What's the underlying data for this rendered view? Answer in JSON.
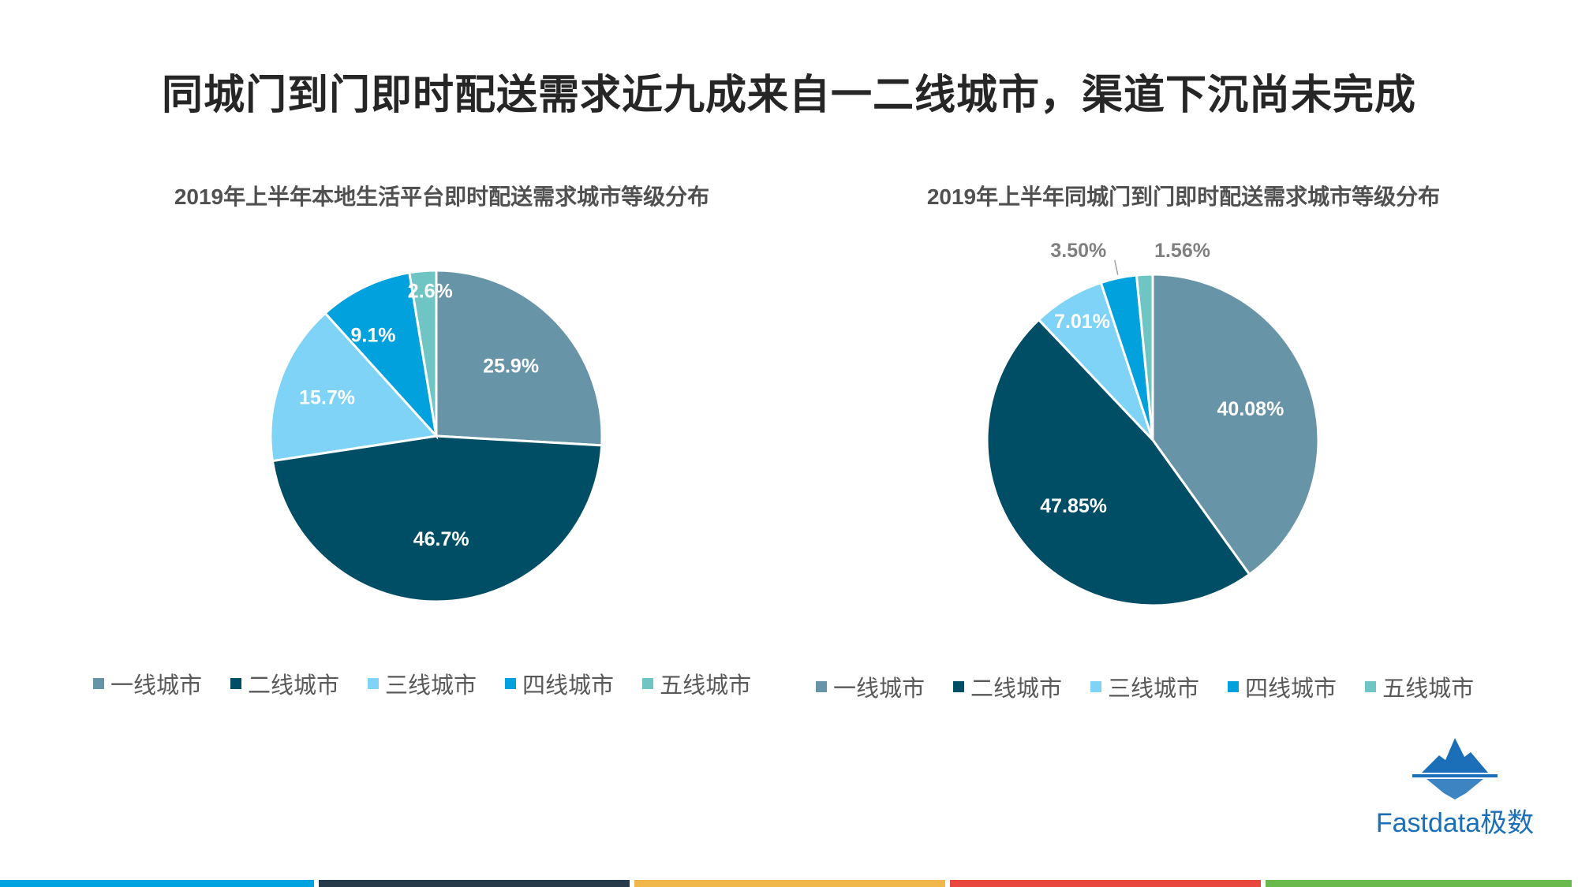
{
  "slide": {
    "title": "同城门到门即时配送需求近九成来自一二线城市，渠道下沉尚未完成",
    "brand": "Fastdata极数",
    "bottom_bar_colors": [
      "#00a2df",
      "#263a4a",
      "#f0b84a",
      "#e9483f",
      "#69b94c"
    ]
  },
  "chart_data": [
    {
      "type": "pie",
      "title": "2019年上半年本地生活平台即时配送需求城市等级分布",
      "categories": [
        "一线城市",
        "二线城市",
        "三线城市",
        "四线城市",
        "五线城市"
      ],
      "values": [
        25.9,
        46.7,
        15.7,
        9.1,
        2.6
      ],
      "labels": [
        "25.9%",
        "46.7%",
        "15.7%",
        "9.1%",
        "2.6%"
      ],
      "colors": [
        "#6894a8",
        "#004d66",
        "#7ed3f7",
        "#00a1dc",
        "#6fc4c4"
      ],
      "legend": "bottom",
      "start_angle": "12 o'clock, clockwise"
    },
    {
      "type": "pie",
      "title": "2019年上半年同城门到门即时配送需求城市等级分布",
      "categories": [
        "一线城市",
        "二线城市",
        "三线城市",
        "四线城市",
        "五线城市"
      ],
      "values": [
        40.08,
        47.85,
        7.01,
        3.5,
        1.56
      ],
      "labels": [
        "40.08%",
        "47.85%",
        "7.01%",
        "3.50%",
        "1.56%"
      ],
      "colors": [
        "#6894a8",
        "#004d66",
        "#7ed3f7",
        "#00a1dc",
        "#6fc4c4"
      ],
      "legend": "bottom",
      "start_angle": "12 o'clock, clockwise"
    }
  ]
}
